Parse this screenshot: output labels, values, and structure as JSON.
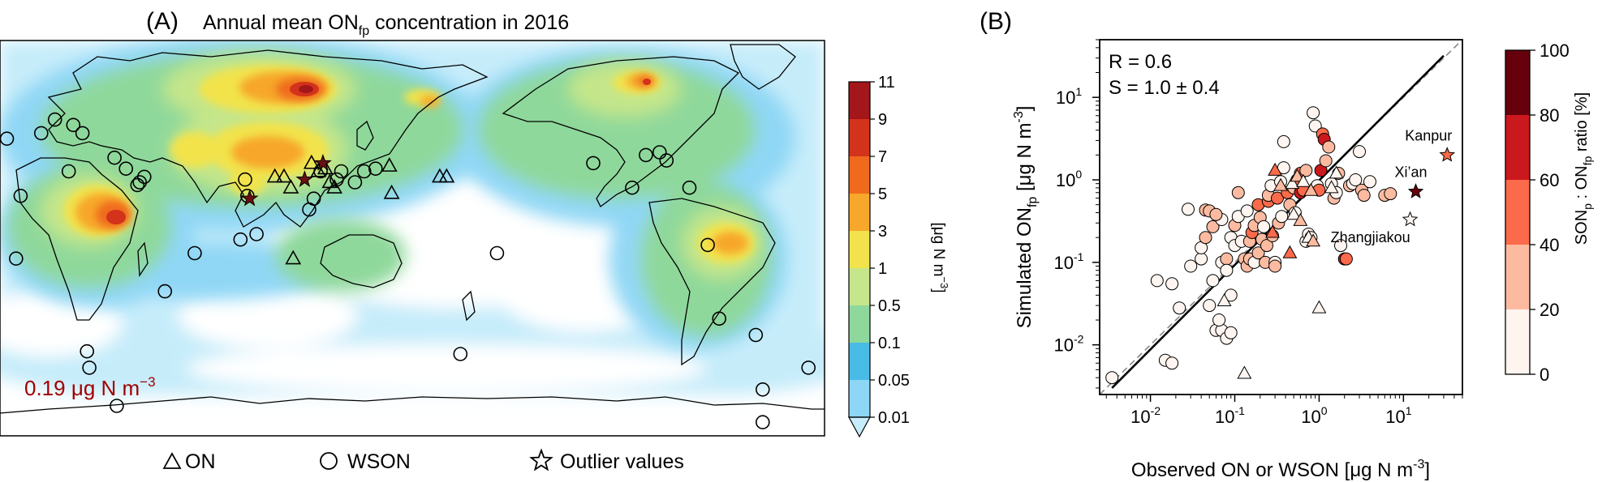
{
  "colors": {
    "ocean_bg": "#ffffff",
    "land_outline": "#000000",
    "annotation": "#a00000",
    "bin_colors": [
      "#c6ecfa",
      "#8dd6f5",
      "#48bce6",
      "#8fd89b",
      "#c5e68a",
      "#f2e34c",
      "#f7a72a",
      "#ef6a1c",
      "#d3321b",
      "#a3171b",
      "#6a0f12"
    ],
    "son_colors": [
      "#fff5f0",
      "#fcbba1",
      "#fb6a4a",
      "#cb181d",
      "#67000d"
    ]
  },
  "panel_a": {
    "label": "(A)",
    "title_main": "Annual mean ON",
    "title_sub": "fp",
    "title_tail": " concentration in 2016",
    "annotation_num": "0.19",
    "annotation_unit": " μg N m",
    "annotation_exp": "−3",
    "colorbar_ticks": [
      "0.01",
      "0.05",
      "0.1",
      "0.5",
      "1",
      "3",
      "5",
      "7",
      "9",
      "11"
    ],
    "colorbar_unit": "[μg N m",
    "colorbar_unit_exp": "−3",
    "colorbar_unit_tail": "]",
    "legend": [
      {
        "symbol": "triangle",
        "label": "ON"
      },
      {
        "symbol": "circle",
        "label": "WSON"
      },
      {
        "symbol": "star",
        "label": "Outlier values"
      }
    ]
  },
  "chart_data": [
    {
      "type": "heatmap",
      "title": "Annual mean ONfp concentration in 2016",
      "colorbar": {
        "levels": [
          0.01,
          0.05,
          0.1,
          0.5,
          1,
          3,
          5,
          7,
          9,
          11
        ],
        "unit": "μg N m−3"
      },
      "annotation": "0.19 μg N m−3",
      "x_range_lon": [
        -25,
        335
      ],
      "y_range_lat": [
        -60,
        85
      ],
      "hotspots": [
        {
          "name": "Central Africa",
          "lon": 22,
          "lat": -6,
          "level": 8
        },
        {
          "name": "Siberia",
          "lon": 100,
          "lat": 58,
          "level": 8
        },
        {
          "name": "Canada",
          "lon": 245,
          "lat": 57,
          "level": 6
        },
        {
          "name": "Amazon",
          "lon": 300,
          "lat": -12,
          "level": 4
        },
        {
          "name": "South Asia",
          "lon": 80,
          "lat": 25,
          "level": 5
        },
        {
          "name": "East Asia",
          "lon": 112,
          "lat": 33,
          "level": 5
        },
        {
          "name": "SE Asia",
          "lon": 102,
          "lat": 15,
          "level": 5
        }
      ],
      "sites_ON": [
        [
          95,
          35
        ],
        [
          99,
          35
        ],
        [
          102,
          31
        ],
        [
          111,
          40
        ],
        [
          114,
          37
        ],
        [
          117,
          38
        ],
        [
          119,
          33
        ],
        [
          121,
          31
        ],
        [
          103,
          5
        ],
        [
          145,
          39
        ],
        [
          146,
          29
        ],
        [
          167,
          35
        ],
        [
          170,
          35
        ]
      ],
      "sites_WSON": [
        [
          -22,
          49
        ],
        [
          -7,
          51
        ],
        [
          -1,
          56
        ],
        [
          7,
          54
        ],
        [
          11,
          51
        ],
        [
          -16,
          28
        ],
        [
          -18,
          5
        ],
        [
          5,
          37
        ],
        [
          25,
          42
        ],
        [
          30,
          38
        ],
        [
          36,
          33
        ],
        [
          35,
          32
        ],
        [
          38,
          35
        ],
        [
          82,
          34
        ],
        [
          83,
          28
        ],
        [
          80,
          12
        ],
        [
          87,
          14
        ],
        [
          60,
          7
        ],
        [
          47,
          -7
        ],
        [
          13,
          -29
        ],
        [
          14,
          -35
        ],
        [
          26,
          -49
        ],
        [
          -21,
          -67
        ],
        [
          110,
          23
        ],
        [
          112,
          27
        ],
        [
          115,
          37
        ],
        [
          122,
          34
        ],
        [
          124,
          37
        ],
        [
          130,
          33
        ],
        [
          134,
          37
        ],
        [
          139,
          38
        ],
        [
          176,
          -30
        ],
        [
          192,
          7
        ],
        [
          234,
          40
        ],
        [
          251,
          31
        ],
        [
          257,
          43
        ],
        [
          263,
          44
        ],
        [
          266,
          41
        ],
        [
          276,
          31
        ],
        [
          284,
          10
        ],
        [
          289,
          -17
        ],
        [
          305,
          -23
        ],
        [
          308,
          -43
        ],
        [
          308,
          -55
        ],
        [
          328,
          -35
        ],
        [
          332,
          -65
        ]
      ],
      "sites_outlier": [
        [
          84,
          27
        ],
        [
          108,
          34
        ],
        [
          116,
          40
        ]
      ]
    },
    {
      "type": "scatter",
      "panel_label": "(B)",
      "xlabel": "Observed ON or WSON [μg N m-3]",
      "ylabel": "Simulated ONfp [μg N m-3]",
      "xscale": "log",
      "yscale": "log",
      "xlim": [
        0.0025,
        50
      ],
      "ylim": [
        0.0025,
        50
      ],
      "x_ticks": [
        "10-2",
        "10-1",
        "100",
        "101"
      ],
      "y_ticks": [
        "10-2",
        "10-1",
        "100",
        "101"
      ],
      "stats": [
        "R = 0.6",
        "S = 1.0 ± 0.4"
      ],
      "fit_line": [
        [
          0.0035,
          0.003
        ],
        [
          30,
          32
        ]
      ],
      "one_to_one_line": [
        [
          0.0025,
          0.0025
        ],
        [
          50,
          50
        ]
      ],
      "colorbar": {
        "label": "SONp : ONfp ratio [%]",
        "ticks": [
          0,
          20,
          40,
          60,
          80,
          100
        ]
      },
      "circles": [
        [
          0.0035,
          0.004,
          0
        ],
        [
          0.012,
          0.06,
          0
        ],
        [
          0.015,
          0.0065,
          0
        ],
        [
          0.018,
          0.006,
          0
        ],
        [
          0.022,
          0.028,
          0
        ],
        [
          0.018,
          0.055,
          0
        ],
        [
          0.03,
          0.09,
          10
        ],
        [
          0.028,
          0.44,
          0
        ],
        [
          0.04,
          0.11,
          10
        ],
        [
          0.04,
          0.15,
          0
        ],
        [
          0.045,
          0.2,
          30
        ],
        [
          0.045,
          0.43,
          30
        ],
        [
          0.05,
          0.42,
          30
        ],
        [
          0.055,
          0.27,
          30
        ],
        [
          0.055,
          0.06,
          0
        ],
        [
          0.05,
          0.03,
          0
        ],
        [
          0.06,
          0.015,
          0
        ],
        [
          0.07,
          0.015,
          0
        ],
        [
          0.08,
          0.012,
          0
        ],
        [
          0.09,
          0.014,
          0
        ],
        [
          0.065,
          0.02,
          10
        ],
        [
          0.07,
          0.33,
          10
        ],
        [
          0.06,
          0.38,
          30
        ],
        [
          0.07,
          0.1,
          10
        ],
        [
          0.08,
          0.11,
          30
        ],
        [
          0.08,
          0.08,
          10
        ],
        [
          0.09,
          0.04,
          0
        ],
        [
          0.09,
          0.2,
          10
        ],
        [
          0.1,
          0.16,
          10
        ],
        [
          0.1,
          0.28,
          30
        ],
        [
          0.11,
          0.36,
          10
        ],
        [
          0.11,
          0.7,
          30
        ],
        [
          0.12,
          0.18,
          10
        ],
        [
          0.13,
          0.11,
          30
        ],
        [
          0.14,
          0.09,
          30
        ],
        [
          0.14,
          0.42,
          10
        ],
        [
          0.15,
          0.18,
          30
        ],
        [
          0.15,
          0.11,
          30
        ],
        [
          0.16,
          0.23,
          50
        ],
        [
          0.17,
          0.28,
          30
        ],
        [
          0.17,
          0.1,
          10
        ],
        [
          0.19,
          0.13,
          30
        ],
        [
          0.19,
          0.5,
          50
        ],
        [
          0.2,
          0.35,
          30
        ],
        [
          0.21,
          0.19,
          30
        ],
        [
          0.22,
          0.27,
          10
        ],
        [
          0.23,
          0.1,
          30
        ],
        [
          0.24,
          0.16,
          30
        ],
        [
          0.25,
          0.55,
          50
        ],
        [
          0.25,
          0.65,
          30
        ],
        [
          0.27,
          0.85,
          10
        ],
        [
          0.28,
          0.21,
          30
        ],
        [
          0.3,
          0.1,
          10
        ],
        [
          0.3,
          0.09,
          30
        ],
        [
          0.32,
          0.6,
          50
        ],
        [
          0.33,
          0.3,
          30
        ],
        [
          0.35,
          0.95,
          10
        ],
        [
          0.36,
          0.36,
          10
        ],
        [
          0.38,
          1.4,
          10
        ],
        [
          0.38,
          2.9,
          0
        ],
        [
          0.42,
          0.7,
          50
        ],
        [
          0.45,
          0.5,
          30
        ],
        [
          0.5,
          0.8,
          30
        ],
        [
          0.52,
          0.4,
          10
        ],
        [
          0.55,
          1.0,
          50
        ],
        [
          0.6,
          1.2,
          50
        ],
        [
          0.6,
          0.7,
          70
        ],
        [
          0.65,
          0.75,
          50
        ],
        [
          0.7,
          1.3,
          30
        ],
        [
          0.7,
          0.18,
          10
        ],
        [
          0.75,
          0.22,
          10
        ],
        [
          0.8,
          0.2,
          10
        ],
        [
          0.85,
          6.5,
          0
        ],
        [
          0.9,
          4.5,
          10
        ],
        [
          0.95,
          0.85,
          10
        ],
        [
          1.0,
          0.75,
          50
        ],
        [
          1.05,
          1.3,
          70
        ],
        [
          1.1,
          3.6,
          50
        ],
        [
          1.15,
          3.1,
          70
        ],
        [
          1.2,
          1.7,
          30
        ],
        [
          1.3,
          2.5,
          30
        ],
        [
          1.4,
          0.9,
          10
        ],
        [
          1.5,
          0.6,
          30
        ],
        [
          1.6,
          0.7,
          10
        ],
        [
          1.7,
          1.2,
          30
        ],
        [
          1.8,
          0.16,
          10
        ],
        [
          2.0,
          0.11,
          70
        ],
        [
          2.1,
          0.11,
          50
        ],
        [
          2.3,
          0.85,
          30
        ],
        [
          2.5,
          0.9,
          10
        ],
        [
          2.7,
          1.0,
          10
        ],
        [
          3.0,
          2.2,
          0
        ],
        [
          3.2,
          0.75,
          30
        ],
        [
          3.4,
          0.65,
          30
        ],
        [
          4.0,
          0.95,
          0
        ],
        [
          6.0,
          0.65,
          30
        ],
        [
          7.0,
          0.68,
          30
        ]
      ],
      "triangles": [
        [
          0.075,
          0.034,
          0
        ],
        [
          0.13,
          0.0045,
          0
        ],
        [
          0.28,
          0.23,
          50
        ],
        [
          0.3,
          1.3,
          50
        ],
        [
          0.35,
          0.85,
          30
        ],
        [
          0.45,
          0.13,
          50
        ],
        [
          0.48,
          0.9,
          0
        ],
        [
          0.5,
          0.38,
          0
        ],
        [
          0.55,
          1.1,
          30
        ],
        [
          0.6,
          0.32,
          30
        ],
        [
          0.65,
          0.95,
          0
        ],
        [
          0.75,
          0.2,
          0
        ],
        [
          0.8,
          0.74,
          30
        ],
        [
          0.85,
          0.18,
          30
        ],
        [
          1.4,
          0.8,
          0
        ],
        [
          1.6,
          1.2,
          10
        ],
        [
          1.0,
          0.028,
          0
        ]
      ],
      "stars": [
        {
          "x": 33,
          "y": 2.0,
          "son": 50,
          "label": "Kanpur"
        },
        {
          "x": 14,
          "y": 0.72,
          "son": 90,
          "label": "Xi’an"
        },
        {
          "x": 12,
          "y": 0.33,
          "son": 0,
          "label": "Zhangjiakou"
        }
      ]
    }
  ],
  "panel_b": {
    "label": "(B)",
    "stat_r": "R = 0.6",
    "stat_s": "S = 1.0 ± 0.4",
    "xlabel_main": "Observed ON or WSON [μg N m",
    "xlabel_exp": "-3",
    "xlabel_tail": "]",
    "ylabel_main": "Simulated ON",
    "ylabel_sub": "fp",
    "ylabel_tail": " [μg N m",
    "ylabel_exp": "-3",
    "ylabel_end": "]",
    "x_ticks": [
      "10",
      "10",
      "10",
      "10"
    ],
    "x_tick_exps": [
      "-2",
      "-1",
      "0",
      "1"
    ],
    "y_ticks": [
      "10",
      "10",
      "10",
      "10"
    ],
    "y_tick_exps": [
      "-2",
      "-1",
      "0",
      "1"
    ],
    "cbar_label_1": "SON",
    "cbar_label_1_sub": "p",
    "cbar_label_2": " : ON",
    "cbar_label_2_sub": "fp",
    "cbar_label_3": " ratio [%]",
    "cbar_ticks": [
      "0",
      "20",
      "40",
      "60",
      "80",
      "100"
    ],
    "star_labels": [
      "Kanpur",
      "Xi’an",
      "Zhangjiakou"
    ]
  }
}
